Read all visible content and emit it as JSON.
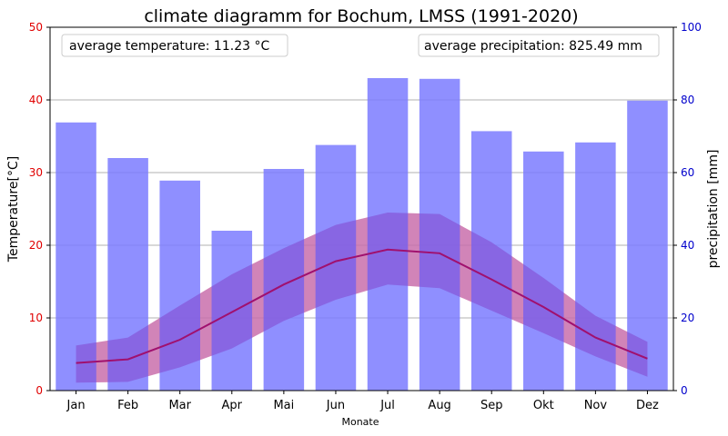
{
  "chart_data": {
    "type": "bar",
    "title": "climate diagramm for Bochum, LMSS (1991-2020)",
    "xlabel": "Monate",
    "ylabel_left": "Temperature[°C]",
    "ylabel_right": "precipitation [mm]",
    "categories": [
      "Jan",
      "Feb",
      "Mar",
      "Apr",
      "Mai",
      "Jun",
      "Jul",
      "Aug",
      "Sep",
      "Okt",
      "Nov",
      "Dez"
    ],
    "precipitation": [
      73.8,
      64.0,
      57.8,
      44.0,
      61.0,
      67.6,
      86.0,
      85.8,
      71.4,
      65.8,
      68.3,
      79.8
    ],
    "temperature_mean": [
      3.8,
      4.3,
      7.0,
      10.8,
      14.6,
      17.8,
      19.4,
      18.9,
      15.3,
      11.5,
      7.3,
      4.4
    ],
    "temperature_max": [
      6.2,
      7.3,
      11.7,
      16.0,
      19.6,
      22.8,
      24.5,
      24.3,
      20.4,
      15.5,
      10.3,
      6.7
    ],
    "temperature_min": [
      1.1,
      1.2,
      3.2,
      5.8,
      9.6,
      12.5,
      14.6,
      14.1,
      11.0,
      7.9,
      4.7,
      1.9
    ],
    "ylim_left": [
      0,
      50
    ],
    "ylim_right": [
      0,
      100
    ],
    "yticks_left": [
      "0",
      "10",
      "20",
      "30",
      "40",
      "50"
    ],
    "yticks_right": [
      "0",
      "20",
      "40",
      "60",
      "80",
      "100"
    ],
    "grid": "horizontal",
    "annotations": {
      "avg_temperature": "average temperature: 11.23 °C",
      "avg_precipitation": "average precipitation: 825.49 mm"
    },
    "colors": {
      "bars": "#7b7bff",
      "line": "#a0106e",
      "temp_band": "#ff9a9a",
      "band_overlay": "#7a2fc2",
      "left_axis": "#e00000",
      "right_axis": "#0000cc"
    }
  }
}
